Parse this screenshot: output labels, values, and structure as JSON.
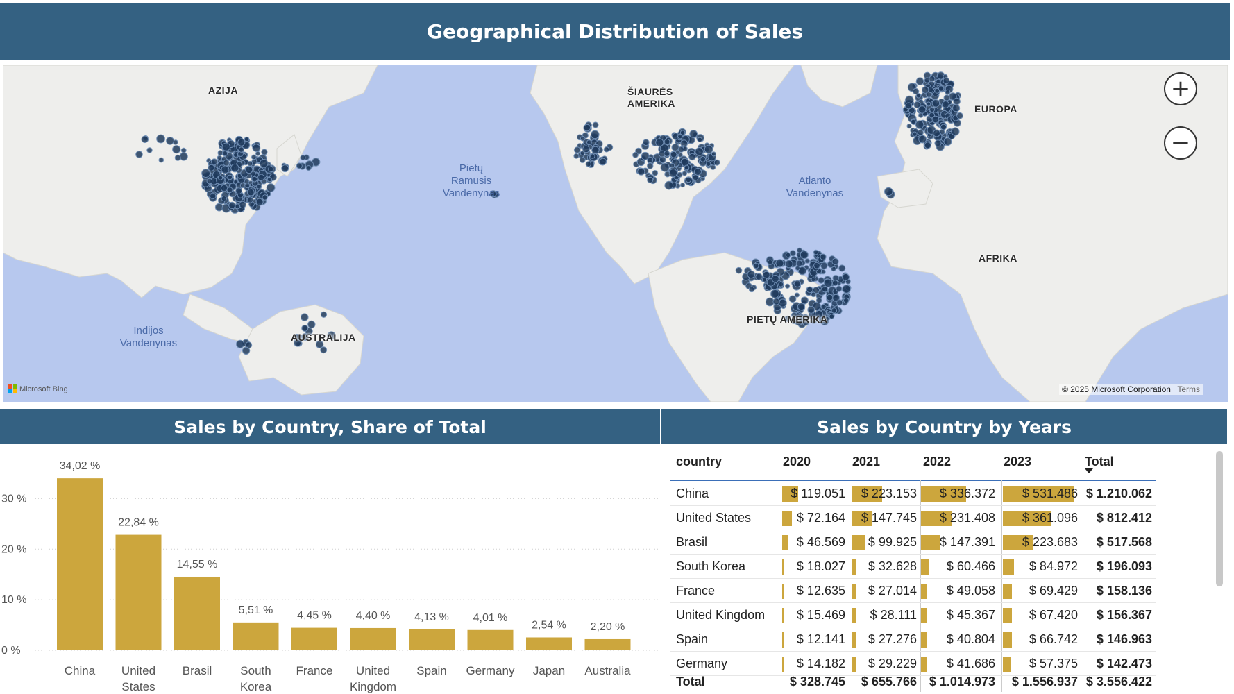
{
  "headers": {
    "top": "Geographical Distribution of Sales",
    "chart": "Sales by Country, Share of Total",
    "table": "Sales by Country by Years"
  },
  "map": {
    "labels": {
      "asia": "AZIJA",
      "north_america_1": "ŠIAURĖS",
      "north_america_2": "AMERIKA",
      "europe": "EUROPA",
      "africa": "AFRIKA",
      "south_america": "PIETŲ AMERIKA",
      "australia": "AUSTRALIJA",
      "pacific_1": "Pietų",
      "pacific_2": "Ramusis",
      "pacific_3": "Vandenynas",
      "atlantic_1": "Atlanto",
      "atlantic_2": "Vandenynas",
      "indian_1": "Indijos",
      "indian_2": "Vandenynas"
    },
    "zoom_in": "+",
    "zoom_out": "−",
    "bing": "Microsoft Bing",
    "copyright": "© 2025 Microsoft Corporation",
    "terms": "Terms",
    "colors": {
      "water": "#b7c8ee",
      "land": "#eeeeec",
      "marker": "#1e3a5c"
    }
  },
  "chart_data": {
    "type": "bar",
    "categories": [
      "China",
      "United States",
      "Brasil",
      "South Korea",
      "France",
      "United Kingdom",
      "Spain",
      "Germany",
      "Japan",
      "Australia"
    ],
    "category_lines": [
      [
        "China"
      ],
      [
        "United",
        "States"
      ],
      [
        "Brasil"
      ],
      [
        "South",
        "Korea"
      ],
      [
        "France"
      ],
      [
        "United",
        "Kingdom"
      ],
      [
        "Spain"
      ],
      [
        "Germany"
      ],
      [
        "Japan"
      ],
      [
        "Australia"
      ]
    ],
    "values": [
      34.02,
      22.84,
      14.55,
      5.51,
      4.45,
      4.4,
      4.13,
      4.01,
      2.54,
      2.2
    ],
    "data_labels": [
      "34,02 %",
      "22,84 %",
      "14,55 %",
      "5,51 %",
      "4,45 %",
      "4,40 %",
      "4,13 %",
      "4,01 %",
      "2,54 %",
      "2,20 %"
    ],
    "yticks": [
      0,
      10,
      20,
      30
    ],
    "ytick_labels": [
      "0 %",
      "10 %",
      "20 %",
      "30 %"
    ],
    "ylim": [
      0,
      35
    ],
    "grid": true,
    "color": "#cca63d"
  },
  "table": {
    "columns": [
      "country",
      "2020",
      "2021",
      "2022",
      "2023",
      "Total"
    ],
    "rows": [
      {
        "country": "China",
        "y2020": "$ 119.051",
        "y2021": "$ 223.153",
        "y2022": "$ 336.372",
        "y2023": "$ 531.486",
        "total": "$ 1.210.062",
        "v": [
          119051,
          223153,
          336372,
          531486
        ]
      },
      {
        "country": "United States",
        "y2020": "$ 72.164",
        "y2021": "$ 147.745",
        "y2022": "$ 231.408",
        "y2023": "$ 361.096",
        "total": "$ 812.412",
        "v": [
          72164,
          147745,
          231408,
          361096
        ]
      },
      {
        "country": "Brasil",
        "y2020": "$ 46.569",
        "y2021": "$ 99.925",
        "y2022": "$ 147.391",
        "y2023": "$ 223.683",
        "total": "$ 517.568",
        "v": [
          46569,
          99925,
          147391,
          223683
        ]
      },
      {
        "country": "South Korea",
        "y2020": "$ 18.027",
        "y2021": "$ 32.628",
        "y2022": "$ 60.466",
        "y2023": "$ 84.972",
        "total": "$ 196.093",
        "v": [
          18027,
          32628,
          60466,
          84972
        ]
      },
      {
        "country": "France",
        "y2020": "$ 12.635",
        "y2021": "$ 27.014",
        "y2022": "$ 49.058",
        "y2023": "$ 69.429",
        "total": "$ 158.136",
        "v": [
          12635,
          27014,
          49058,
          69429
        ]
      },
      {
        "country": "United Kingdom",
        "y2020": "$ 15.469",
        "y2021": "$ 28.111",
        "y2022": "$ 45.367",
        "y2023": "$ 67.420",
        "total": "$ 156.367",
        "v": [
          15469,
          28111,
          45367,
          67420
        ]
      },
      {
        "country": "Spain",
        "y2020": "$ 12.141",
        "y2021": "$ 27.276",
        "y2022": "$ 40.804",
        "y2023": "$ 66.742",
        "total": "$ 146.963",
        "v": [
          12141,
          27276,
          40804,
          66742
        ]
      },
      {
        "country": "Germany",
        "y2020": "$ 14.182",
        "y2021": "$ 29.229",
        "y2022": "$ 41.686",
        "y2023": "$ 57.375",
        "total": "$ 142.473",
        "v": [
          14182,
          29229,
          41686,
          57375
        ]
      }
    ],
    "totals": {
      "label": "Total",
      "y2020": "$ 328.745",
      "y2021": "$ 655.766",
      "y2022": "$ 1.014.973",
      "y2023": "$ 1.556.937",
      "total": "$ 3.556.422"
    },
    "sort_indicator": "Total descending",
    "bar_color": "#cca63d"
  }
}
